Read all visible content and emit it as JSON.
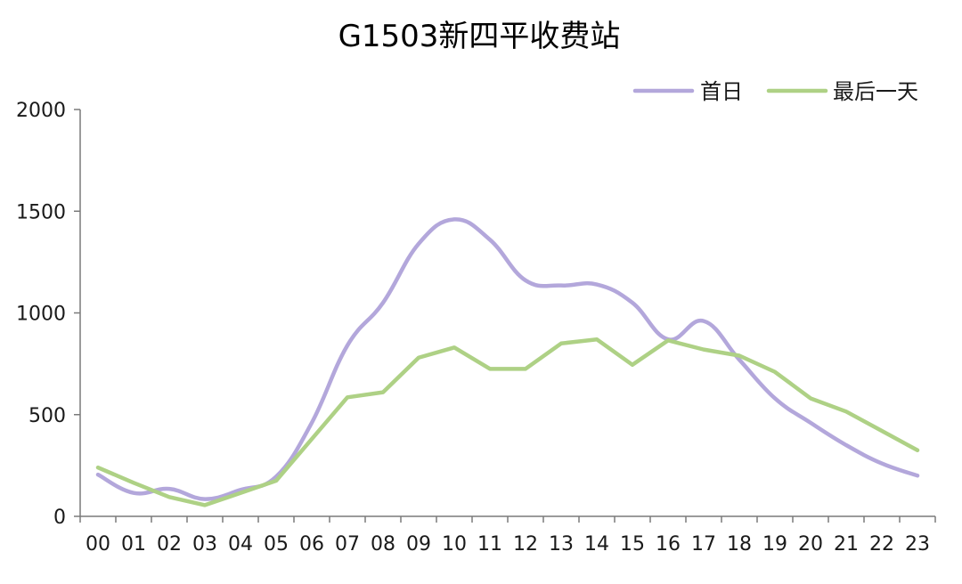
{
  "chart_data": {
    "type": "line",
    "title": "G1503新四平收费站",
    "xlabel": "",
    "ylabel": "",
    "categories": [
      "00",
      "01",
      "02",
      "03",
      "04",
      "05",
      "06",
      "07",
      "08",
      "09",
      "10",
      "11",
      "12",
      "13",
      "14",
      "15",
      "16",
      "17",
      "18",
      "19",
      "20",
      "21",
      "22",
      "23"
    ],
    "y_ticks": [
      "0",
      "500",
      "1000",
      "1500",
      "2000"
    ],
    "ylim": [
      0,
      2000
    ],
    "grid": false,
    "legend_position": "top-right",
    "series": [
      {
        "name": "首日",
        "color": "#b3a7db",
        "smooth": true,
        "values": [
          205,
          115,
          135,
          85,
          130,
          195,
          460,
          840,
          1050,
          1340,
          1460,
          1360,
          1160,
          1135,
          1140,
          1050,
          870,
          960,
          770,
          580,
          460,
          350,
          260,
          200
        ]
      },
      {
        "name": "最后一天",
        "color": "#aed185",
        "smooth": false,
        "values": [
          240,
          165,
          95,
          55,
          115,
          175,
          380,
          585,
          610,
          780,
          830,
          725,
          725,
          850,
          870,
          745,
          865,
          820,
          790,
          710,
          580,
          515,
          420,
          325
        ]
      }
    ]
  }
}
